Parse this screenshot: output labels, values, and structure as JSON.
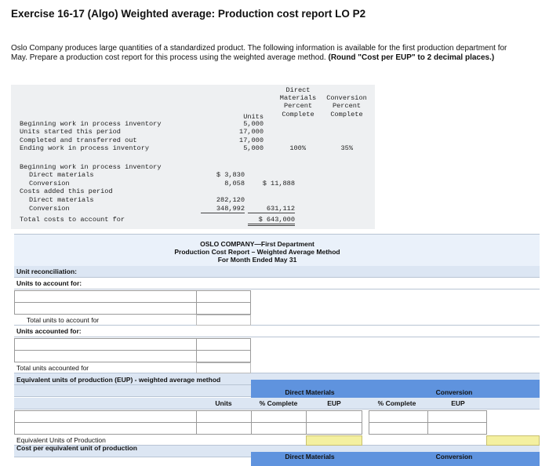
{
  "header": {
    "title": "Exercise 16-17 (Algo) Weighted average: Production cost report LO P2"
  },
  "instructions": {
    "text": "Oslo Company produces large quantities of a standardized product. The following information is available for the first production department for May. Prepare a production cost report for this process using the weighted average method.",
    "emphasis": "(Round \"Cost per EUP\" to 2 decimal places.)"
  },
  "info": {
    "columns": {
      "units": "Units",
      "direct_materials": [
        "Direct",
        "Materials",
        "Percent",
        "Complete"
      ],
      "conversion": [
        "Conversion",
        "Percent",
        "Complete"
      ]
    },
    "rows": [
      {
        "label": "Beginning work in process inventory",
        "units": "5,000"
      },
      {
        "label": "Units started this period",
        "units": "17,000"
      },
      {
        "label": "Completed and transferred out",
        "units": "17,000"
      },
      {
        "label": "Ending work in process inventory",
        "units": "5,000",
        "direct_materials": "100%",
        "conversion": "35%"
      }
    ],
    "costs": [
      {
        "label": "Beginning work in process inventory"
      },
      {
        "label": "Direct materials",
        "amount": "$ 3,830"
      },
      {
        "label": "Conversion",
        "amount": "8,058",
        "total": "$ 11,888"
      },
      {
        "label": "Costs added this period"
      },
      {
        "label": "Direct materials",
        "amount": "282,120"
      },
      {
        "label": "Conversion",
        "amount": "348,992",
        "total": "631,112"
      },
      {
        "label": "Total costs to account for",
        "total": "$ 643,000"
      }
    ]
  },
  "report": {
    "company": "OSLO COMPANY—First Department",
    "title": "Production Cost Report – Weighted Average Method",
    "period": "For Month Ended May 31",
    "unit_reconciliation": "Unit reconciliation:",
    "units_to_account_for": "Units to account for:",
    "total_units_to_account_for": "Total units to account for",
    "units_accounted_for": "Units accounted for:",
    "total_units_accounted_for": "Total units accounted for",
    "eup": {
      "title": "Equivalent units of production (EUP) - weighted average method",
      "groups": [
        "Direct Materials",
        "Conversion"
      ],
      "columns": [
        "Units",
        "% Complete",
        "EUP",
        "% Complete",
        "EUP"
      ],
      "total": "Equivalent Units of Production"
    },
    "cost_per_eup": {
      "title": "Cost per equivalent unit of production",
      "groups": [
        "Direct Materials",
        "Conversion"
      ]
    }
  }
}
